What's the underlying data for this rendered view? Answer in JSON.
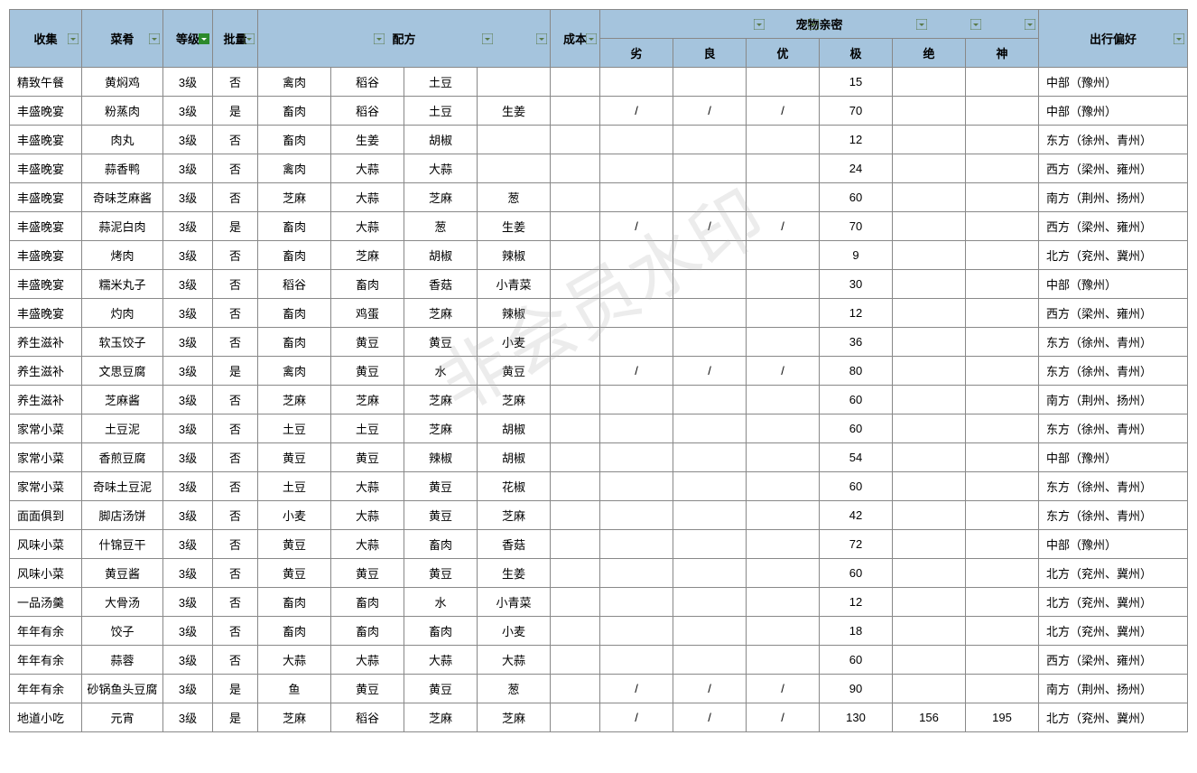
{
  "header_bg_color": "#a5c4dd",
  "border_color": "#888888",
  "filter_normal_color": "#5a7a4a",
  "filter_active_color": "#2c8a2c",
  "headers": {
    "collection": "收集",
    "dish": "菜肴",
    "level": "等级",
    "batch": "批量",
    "recipe": "配方",
    "cost": "成本",
    "intimacy": "宠物亲密",
    "preference": "出行偏好",
    "poor": "劣",
    "good": "良",
    "excellent": "优",
    "extreme": "极",
    "ultimate": "绝",
    "divine": "神"
  },
  "rows": [
    {
      "collection": "精致午餐",
      "dish": "黄焖鸡",
      "level": "3级",
      "batch": "否",
      "ing1": "禽肉",
      "ing2": "稻谷",
      "ing3": "土豆",
      "ing4": "",
      "cost": "",
      "poor": "",
      "good": "",
      "excellent": "",
      "extreme": "15",
      "ultimate": "",
      "divine": "",
      "pref": "中部（豫州）"
    },
    {
      "collection": "丰盛晚宴",
      "dish": "粉蒸肉",
      "level": "3级",
      "batch": "是",
      "ing1": "畜肉",
      "ing2": "稻谷",
      "ing3": "土豆",
      "ing4": "生姜",
      "cost": "",
      "poor": "/",
      "good": "/",
      "excellent": "/",
      "extreme": "70",
      "ultimate": "",
      "divine": "",
      "pref": "中部（豫州）"
    },
    {
      "collection": "丰盛晚宴",
      "dish": "肉丸",
      "level": "3级",
      "batch": "否",
      "ing1": "畜肉",
      "ing2": "生姜",
      "ing3": "胡椒",
      "ing4": "",
      "cost": "",
      "poor": "",
      "good": "",
      "excellent": "",
      "extreme": "12",
      "ultimate": "",
      "divine": "",
      "pref": "东方（徐州、青州）"
    },
    {
      "collection": "丰盛晚宴",
      "dish": "蒜香鸭",
      "level": "3级",
      "batch": "否",
      "ing1": "禽肉",
      "ing2": "大蒜",
      "ing3": "大蒜",
      "ing4": "",
      "cost": "",
      "poor": "",
      "good": "",
      "excellent": "",
      "extreme": "24",
      "ultimate": "",
      "divine": "",
      "pref": "西方（梁州、雍州）"
    },
    {
      "collection": "丰盛晚宴",
      "dish": "奇味芝麻酱",
      "level": "3级",
      "batch": "否",
      "ing1": "芝麻",
      "ing2": "大蒜",
      "ing3": "芝麻",
      "ing4": "葱",
      "cost": "",
      "poor": "",
      "good": "",
      "excellent": "",
      "extreme": "60",
      "ultimate": "",
      "divine": "",
      "pref": "南方（荆州、扬州）"
    },
    {
      "collection": "丰盛晚宴",
      "dish": "蒜泥白肉",
      "level": "3级",
      "batch": "是",
      "ing1": "畜肉",
      "ing2": "大蒜",
      "ing3": "葱",
      "ing4": "生姜",
      "cost": "",
      "poor": "/",
      "good": "/",
      "excellent": "/",
      "extreme": "70",
      "ultimate": "",
      "divine": "",
      "pref": "西方（梁州、雍州）"
    },
    {
      "collection": "丰盛晚宴",
      "dish": "烤肉",
      "level": "3级",
      "batch": "否",
      "ing1": "畜肉",
      "ing2": "芝麻",
      "ing3": "胡椒",
      "ing4": "辣椒",
      "cost": "",
      "poor": "",
      "good": "",
      "excellent": "",
      "extreme": "9",
      "ultimate": "",
      "divine": "",
      "pref": "北方（兖州、冀州）"
    },
    {
      "collection": "丰盛晚宴",
      "dish": "糯米丸子",
      "level": "3级",
      "batch": "否",
      "ing1": "稻谷",
      "ing2": "畜肉",
      "ing3": "香菇",
      "ing4": "小青菜",
      "cost": "",
      "poor": "",
      "good": "",
      "excellent": "",
      "extreme": "30",
      "ultimate": "",
      "divine": "",
      "pref": "中部（豫州）"
    },
    {
      "collection": "丰盛晚宴",
      "dish": "灼肉",
      "level": "3级",
      "batch": "否",
      "ing1": "畜肉",
      "ing2": "鸡蛋",
      "ing3": "芝麻",
      "ing4": "辣椒",
      "cost": "",
      "poor": "",
      "good": "",
      "excellent": "",
      "extreme": "12",
      "ultimate": "",
      "divine": "",
      "pref": "西方（梁州、雍州）"
    },
    {
      "collection": "养生滋补",
      "dish": "软玉饺子",
      "level": "3级",
      "batch": "否",
      "ing1": "畜肉",
      "ing2": "黄豆",
      "ing3": "黄豆",
      "ing4": "小麦",
      "cost": "",
      "poor": "",
      "good": "",
      "excellent": "",
      "extreme": "36",
      "ultimate": "",
      "divine": "",
      "pref": "东方（徐州、青州）"
    },
    {
      "collection": "养生滋补",
      "dish": "文思豆腐",
      "level": "3级",
      "batch": "是",
      "ing1": "禽肉",
      "ing2": "黄豆",
      "ing3": "水",
      "ing4": "黄豆",
      "cost": "",
      "poor": "/",
      "good": "/",
      "excellent": "/",
      "extreme": "80",
      "ultimate": "",
      "divine": "",
      "pref": "东方（徐州、青州）"
    },
    {
      "collection": "养生滋补",
      "dish": "芝麻酱",
      "level": "3级",
      "batch": "否",
      "ing1": "芝麻",
      "ing2": "芝麻",
      "ing3": "芝麻",
      "ing4": "芝麻",
      "cost": "",
      "poor": "",
      "good": "",
      "excellent": "",
      "extreme": "60",
      "ultimate": "",
      "divine": "",
      "pref": "南方（荆州、扬州）"
    },
    {
      "collection": "家常小菜",
      "dish": "土豆泥",
      "level": "3级",
      "batch": "否",
      "ing1": "土豆",
      "ing2": "土豆",
      "ing3": "芝麻",
      "ing4": "胡椒",
      "cost": "",
      "poor": "",
      "good": "",
      "excellent": "",
      "extreme": "60",
      "ultimate": "",
      "divine": "",
      "pref": "东方（徐州、青州）"
    },
    {
      "collection": "家常小菜",
      "dish": "香煎豆腐",
      "level": "3级",
      "batch": "否",
      "ing1": "黄豆",
      "ing2": "黄豆",
      "ing3": "辣椒",
      "ing4": "胡椒",
      "cost": "",
      "poor": "",
      "good": "",
      "excellent": "",
      "extreme": "54",
      "ultimate": "",
      "divine": "",
      "pref": "中部（豫州）"
    },
    {
      "collection": "家常小菜",
      "dish": "奇味土豆泥",
      "level": "3级",
      "batch": "否",
      "ing1": "土豆",
      "ing2": "大蒜",
      "ing3": "黄豆",
      "ing4": "花椒",
      "cost": "",
      "poor": "",
      "good": "",
      "excellent": "",
      "extreme": "60",
      "ultimate": "",
      "divine": "",
      "pref": "东方（徐州、青州）"
    },
    {
      "collection": "面面俱到",
      "dish": "脚店汤饼",
      "level": "3级",
      "batch": "否",
      "ing1": "小麦",
      "ing2": "大蒜",
      "ing3": "黄豆",
      "ing4": "芝麻",
      "cost": "",
      "poor": "",
      "good": "",
      "excellent": "",
      "extreme": "42",
      "ultimate": "",
      "divine": "",
      "pref": "东方（徐州、青州）"
    },
    {
      "collection": "风味小菜",
      "dish": "什锦豆干",
      "level": "3级",
      "batch": "否",
      "ing1": "黄豆",
      "ing2": "大蒜",
      "ing3": "畜肉",
      "ing4": "香菇",
      "cost": "",
      "poor": "",
      "good": "",
      "excellent": "",
      "extreme": "72",
      "ultimate": "",
      "divine": "",
      "pref": "中部（豫州）"
    },
    {
      "collection": "风味小菜",
      "dish": "黄豆酱",
      "level": "3级",
      "batch": "否",
      "ing1": "黄豆",
      "ing2": "黄豆",
      "ing3": "黄豆",
      "ing4": "生姜",
      "cost": "",
      "poor": "",
      "good": "",
      "excellent": "",
      "extreme": "60",
      "ultimate": "",
      "divine": "",
      "pref": "北方（兖州、冀州）"
    },
    {
      "collection": "一品汤羹",
      "dish": "大骨汤",
      "level": "3级",
      "batch": "否",
      "ing1": "畜肉",
      "ing2": "畜肉",
      "ing3": "水",
      "ing4": "小青菜",
      "cost": "",
      "poor": "",
      "good": "",
      "excellent": "",
      "extreme": "12",
      "ultimate": "",
      "divine": "",
      "pref": "北方（兖州、冀州）"
    },
    {
      "collection": "年年有余",
      "dish": "饺子",
      "level": "3级",
      "batch": "否",
      "ing1": "畜肉",
      "ing2": "畜肉",
      "ing3": "畜肉",
      "ing4": "小麦",
      "cost": "",
      "poor": "",
      "good": "",
      "excellent": "",
      "extreme": "18",
      "ultimate": "",
      "divine": "",
      "pref": "北方（兖州、冀州）"
    },
    {
      "collection": "年年有余",
      "dish": "蒜蓉",
      "level": "3级",
      "batch": "否",
      "ing1": "大蒜",
      "ing2": "大蒜",
      "ing3": "大蒜",
      "ing4": "大蒜",
      "cost": "",
      "poor": "",
      "good": "",
      "excellent": "",
      "extreme": "60",
      "ultimate": "",
      "divine": "",
      "pref": "西方（梁州、雍州）"
    },
    {
      "collection": "年年有余",
      "dish": "砂锅鱼头豆腐",
      "level": "3级",
      "batch": "是",
      "ing1": "鱼",
      "ing2": "黄豆",
      "ing3": "黄豆",
      "ing4": "葱",
      "cost": "",
      "poor": "/",
      "good": "/",
      "excellent": "/",
      "extreme": "90",
      "ultimate": "",
      "divine": "",
      "pref": "南方（荆州、扬州）"
    },
    {
      "collection": "地道小吃",
      "dish": "元宵",
      "level": "3级",
      "batch": "是",
      "ing1": "芝麻",
      "ing2": "稻谷",
      "ing3": "芝麻",
      "ing4": "芝麻",
      "cost": "",
      "poor": "/",
      "good": "/",
      "excellent": "/",
      "extreme": "130",
      "ultimate": "156",
      "divine": "195",
      "pref": "北方（兖州、冀州）"
    }
  ]
}
